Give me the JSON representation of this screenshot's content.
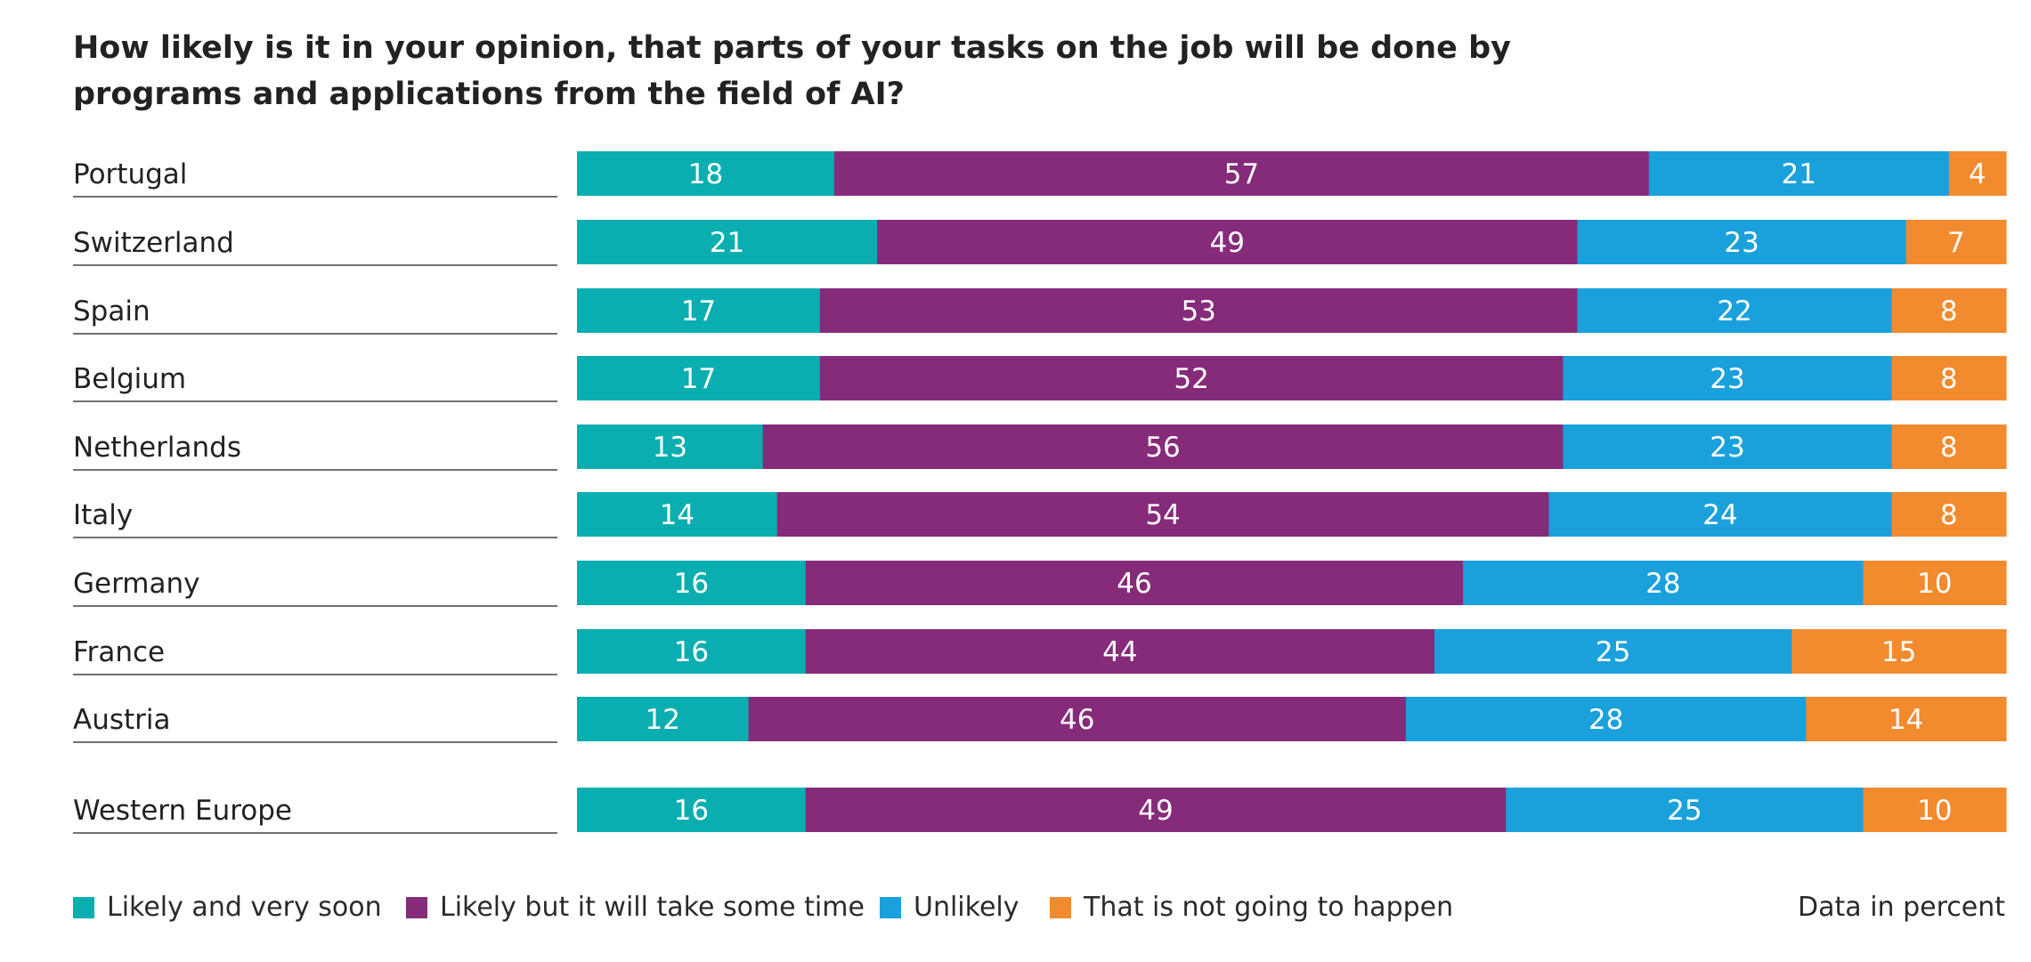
{
  "chart_data": {
    "type": "bar",
    "orientation": "horizontal",
    "stacked": true,
    "title": "How likely is it in your opinion, that parts of your tasks on the job will be done by programs and applications from the field of AI?",
    "note": "Data in percent",
    "xlim": [
      0,
      100
    ],
    "categories": [
      "Portugal",
      "Switzerland",
      "Spain",
      "Belgium",
      "Netherlands",
      "Italy",
      "Germany",
      "France",
      "Austria",
      "Western Europe"
    ],
    "series": [
      {
        "name": "Likely and very soon",
        "color": "#0aaeb0",
        "values": [
          18,
          21,
          17,
          17,
          13,
          14,
          16,
          16,
          12,
          16
        ]
      },
      {
        "name": "Likely but it will take some time",
        "color": "#862a7a",
        "values": [
          57,
          49,
          53,
          52,
          56,
          54,
          46,
          44,
          46,
          49
        ]
      },
      {
        "name": "Unlikely",
        "color": "#1aa1dc",
        "values": [
          21,
          23,
          22,
          23,
          23,
          24,
          28,
          25,
          28,
          25
        ]
      },
      {
        "name": "That is not going to happen",
        "color": "#f28a2e",
        "values": [
          4,
          7,
          8,
          8,
          8,
          8,
          10,
          15,
          14,
          10
        ]
      }
    ],
    "legend": "bottom-left",
    "grid": false
  }
}
